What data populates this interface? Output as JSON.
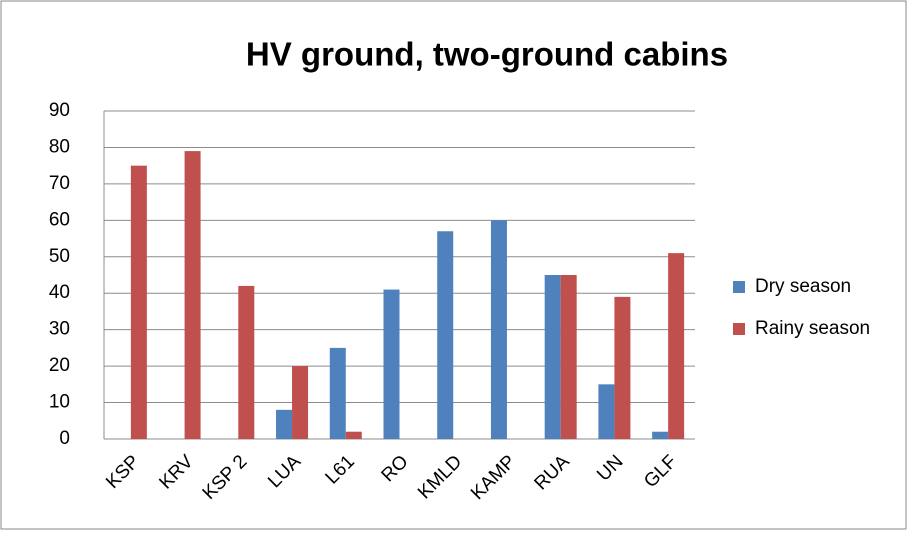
{
  "chart_data": {
    "type": "bar",
    "title": "HV ground, two-ground cabins",
    "categories": [
      "KSP",
      "KRV",
      "KSP 2",
      "LUA",
      "L61",
      "RO",
      "KMLD",
      "KAMP",
      "RUA",
      "UN",
      "GLF"
    ],
    "series": [
      {
        "name": "Dry season",
        "color": "#4f81bd",
        "values": [
          0,
          0,
          0,
          8,
          25,
          41,
          57,
          60,
          45,
          15,
          2
        ]
      },
      {
        "name": "Rainy season",
        "color": "#c0504d",
        "values": [
          75,
          79,
          42,
          20,
          2,
          0,
          0,
          0,
          45,
          39,
          51
        ]
      }
    ],
    "ylim": [
      0,
      90
    ],
    "yticks": [
      0,
      10,
      20,
      30,
      40,
      50,
      60,
      70,
      80,
      90
    ],
    "grid": true,
    "legend": "right"
  }
}
